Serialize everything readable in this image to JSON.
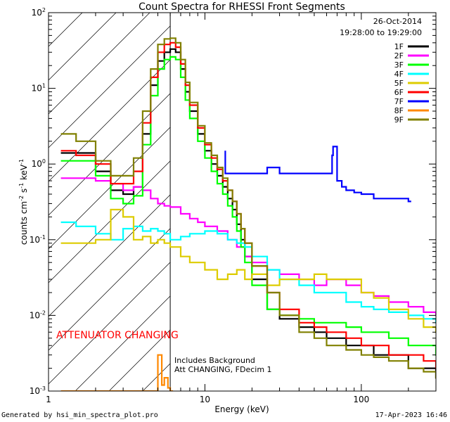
{
  "chart_data": {
    "type": "line",
    "title": "Count Spectra for RHESSI Front Segments",
    "xlabel": "Energy (keV)",
    "ylabel_parts": {
      "base": "counts cm",
      "exp1": "-2",
      "mid1": " s",
      "exp2": "-1",
      "mid2": " keV",
      "exp3": "-1"
    },
    "xscale": "log",
    "yscale": "log",
    "xlim": [
      1,
      300
    ],
    "ylim": [
      0.001,
      100
    ],
    "xticks": [
      {
        "value": 1,
        "label": "1"
      },
      {
        "value": 10,
        "label": "10"
      },
      {
        "value": 100,
        "label": "100"
      }
    ],
    "yticks": [
      {
        "value": 0.001,
        "base": "10",
        "exp": "-3"
      },
      {
        "value": 0.01,
        "base": "10",
        "exp": "-2"
      },
      {
        "value": 0.1,
        "base": "10",
        "exp": "-1"
      },
      {
        "value": 1,
        "base": "10",
        "exp": "0"
      },
      {
        "value": 10,
        "base": "10",
        "exp": "1"
      },
      {
        "value": 100,
        "base": "10",
        "exp": "2"
      }
    ],
    "date": "26-Oct-2014",
    "time_range": "19:28:00 to 19:29:00",
    "attenuator_text": "ATTENUATOR CHANGING",
    "note_line1": "Includes Background",
    "note_line2": "Att CHANGING, FDecim 1",
    "hatched_region_max_energy_kev": 6,
    "legend": [
      {
        "name": "1F",
        "color": "#000000"
      },
      {
        "name": "2F",
        "color": "#ff00ff"
      },
      {
        "name": "3F",
        "color": "#00ff00"
      },
      {
        "name": "4F",
        "color": "#00ffff"
      },
      {
        "name": "5F",
        "color": "#ddcc00"
      },
      {
        "name": "6F",
        "color": "#ff0000"
      },
      {
        "name": "7F",
        "color": "#0000ff"
      },
      {
        "name": "8F",
        "color": "#ff8800"
      },
      {
        "name": "9F",
        "color": "#808000"
      }
    ],
    "series": [
      {
        "name": "1F",
        "color": "#000000",
        "x": [
          1.2,
          1.5,
          2.0,
          2.5,
          3.0,
          3.5,
          4.0,
          4.5,
          5.0,
          5.5,
          6.0,
          6.5,
          7.0,
          7.5,
          8.0,
          9.0,
          10,
          11,
          12,
          13,
          14,
          15,
          16,
          17,
          18,
          20,
          25,
          30,
          40,
          50,
          60,
          80,
          100,
          120,
          150,
          200,
          250,
          300
        ],
        "y": [
          1.4,
          1.4,
          0.8,
          0.45,
          0.4,
          0.5,
          2.5,
          11,
          23,
          30,
          33,
          30,
          18,
          9,
          5,
          2.5,
          1.5,
          1.0,
          0.7,
          0.5,
          0.35,
          0.25,
          0.16,
          0.1,
          0.06,
          0.03,
          0.012,
          0.009,
          0.007,
          0.006,
          0.005,
          0.004,
          0.004,
          0.003,
          0.003,
          0.002,
          0.002,
          0.0015
        ]
      },
      {
        "name": "2F",
        "color": "#ff00ff",
        "x": [
          1.2,
          1.5,
          2.0,
          2.5,
          3.0,
          3.5,
          4.0,
          4.5,
          5.0,
          5.5,
          6.0,
          7,
          8,
          9,
          10,
          12,
          14,
          16,
          18,
          20,
          25,
          30,
          40,
          50,
          60,
          80,
          100,
          120,
          150,
          200,
          250,
          300
        ],
        "y": [
          0.65,
          0.65,
          0.6,
          0.55,
          0.45,
          0.5,
          0.45,
          0.35,
          0.3,
          0.28,
          0.27,
          0.22,
          0.19,
          0.17,
          0.15,
          0.13,
          0.1,
          0.08,
          0.06,
          0.05,
          0.04,
          0.035,
          0.03,
          0.025,
          0.03,
          0.025,
          0.02,
          0.018,
          0.015,
          0.013,
          0.011,
          0.01
        ]
      },
      {
        "name": "3F",
        "color": "#00ff00",
        "x": [
          1.2,
          1.5,
          2.0,
          2.5,
          3.0,
          3.5,
          4.0,
          4.5,
          5.0,
          5.5,
          6.0,
          6.5,
          7.0,
          7.5,
          8.0,
          9.0,
          10,
          11,
          12,
          13,
          14,
          15,
          16,
          17,
          18,
          20,
          25,
          30,
          40,
          50,
          60,
          80,
          100,
          120,
          150,
          200,
          250,
          300
        ],
        "y": [
          1.1,
          1.1,
          0.7,
          0.35,
          0.3,
          0.38,
          1.8,
          8,
          18,
          24,
          26,
          24,
          14,
          7,
          4,
          2.0,
          1.2,
          0.8,
          0.55,
          0.4,
          0.28,
          0.2,
          0.13,
          0.08,
          0.05,
          0.025,
          0.012,
          0.01,
          0.009,
          0.008,
          0.008,
          0.007,
          0.006,
          0.006,
          0.005,
          0.004,
          0.004,
          0.003
        ]
      },
      {
        "name": "4F",
        "color": "#00ffff",
        "x": [
          1.2,
          1.5,
          2.0,
          2.5,
          3.0,
          3.5,
          4.0,
          4.5,
          5.0,
          5.5,
          6.0,
          7,
          8,
          10,
          12,
          14,
          16,
          18,
          20,
          25,
          30,
          40,
          50,
          60,
          80,
          100,
          120,
          150,
          200,
          250,
          300
        ],
        "y": [
          0.17,
          0.15,
          0.12,
          0.1,
          0.14,
          0.15,
          0.13,
          0.14,
          0.13,
          0.12,
          0.1,
          0.11,
          0.12,
          0.13,
          0.12,
          0.1,
          0.09,
          0.08,
          0.06,
          0.04,
          0.03,
          0.025,
          0.02,
          0.02,
          0.015,
          0.013,
          0.012,
          0.011,
          0.01,
          0.009,
          0.008
        ]
      },
      {
        "name": "5F",
        "color": "#ddcc00",
        "x": [
          1.2,
          1.5,
          2.0,
          2.5,
          3.0,
          3.5,
          4.0,
          4.5,
          5.0,
          5.5,
          6.0,
          7,
          8,
          10,
          12,
          14,
          16,
          18,
          20,
          25,
          30,
          40,
          50,
          60,
          80,
          100,
          120,
          150,
          200,
          250,
          300
        ],
        "y": [
          0.09,
          0.09,
          0.1,
          0.25,
          0.2,
          0.1,
          0.11,
          0.09,
          0.1,
          0.09,
          0.08,
          0.06,
          0.05,
          0.04,
          0.03,
          0.035,
          0.04,
          0.03,
          0.035,
          0.025,
          0.03,
          0.03,
          0.035,
          0.03,
          0.03,
          0.02,
          0.017,
          0.012,
          0.009,
          0.007,
          0.006
        ]
      },
      {
        "name": "6F",
        "color": "#ff0000",
        "x": [
          1.2,
          1.5,
          2.0,
          2.5,
          3.0,
          3.5,
          4.0,
          4.5,
          5.0,
          5.5,
          6.0,
          6.5,
          7.0,
          7.5,
          8.0,
          9.0,
          10,
          11,
          12,
          13,
          14,
          15,
          16,
          17,
          18,
          20,
          25,
          30,
          40,
          50,
          60,
          80,
          100,
          120,
          150,
          200,
          250,
          300
        ],
        "y": [
          1.5,
          1.3,
          1.0,
          0.55,
          0.55,
          0.8,
          3.5,
          14,
          30,
          38,
          40,
          35,
          21,
          11,
          6,
          3.0,
          1.8,
          1.2,
          0.85,
          0.6,
          0.45,
          0.32,
          0.22,
          0.14,
          0.09,
          0.045,
          0.02,
          0.012,
          0.008,
          0.007,
          0.006,
          0.005,
          0.004,
          0.004,
          0.003,
          0.003,
          0.0025,
          0.002
        ]
      },
      {
        "name": "7F",
        "color": "#0000ff",
        "x": [
          13.5,
          13.5,
          25,
          30,
          65,
          65,
          66,
          70,
          75,
          80,
          90,
          100,
          120,
          200
        ],
        "y": [
          1.5,
          0.75,
          0.9,
          0.75,
          1.0,
          1.3,
          1.7,
          0.6,
          0.5,
          0.45,
          0.42,
          0.4,
          0.35,
          0.32
        ]
      },
      {
        "name": "8F",
        "color": "#ff8800",
        "x": [
          1.2,
          1.5,
          5.0,
          5.3,
          5.5,
          5.8,
          6.0
        ],
        "y": [
          0.001,
          0.001,
          0.003,
          0.0012,
          0.0015,
          0.0011,
          0.001
        ]
      },
      {
        "name": "9F",
        "color": "#808000",
        "x": [
          1.2,
          1.5,
          2.0,
          2.5,
          3.0,
          3.5,
          4.0,
          4.5,
          5.0,
          5.5,
          6.0,
          6.5,
          7.0,
          7.5,
          8.0,
          9.0,
          10,
          11,
          12,
          13,
          14,
          15,
          16,
          17,
          18,
          20,
          25,
          30,
          40,
          50,
          60,
          80,
          100,
          120,
          150,
          200,
          250,
          300
        ],
        "y": [
          2.5,
          2.0,
          1.1,
          0.7,
          0.7,
          1.2,
          5.0,
          18,
          38,
          45,
          46,
          40,
          24,
          12,
          6.5,
          3.2,
          1.9,
          1.3,
          0.9,
          0.65,
          0.45,
          0.32,
          0.22,
          0.14,
          0.09,
          0.045,
          0.02,
          0.01,
          0.006,
          0.005,
          0.004,
          0.0035,
          0.003,
          0.0028,
          0.0025,
          0.002,
          0.0018,
          0.0015
        ]
      }
    ]
  },
  "footer": {
    "left": "Generated by hsi_min_spectra_plot.pro",
    "right": "17-Apr-2023 16:46"
  }
}
